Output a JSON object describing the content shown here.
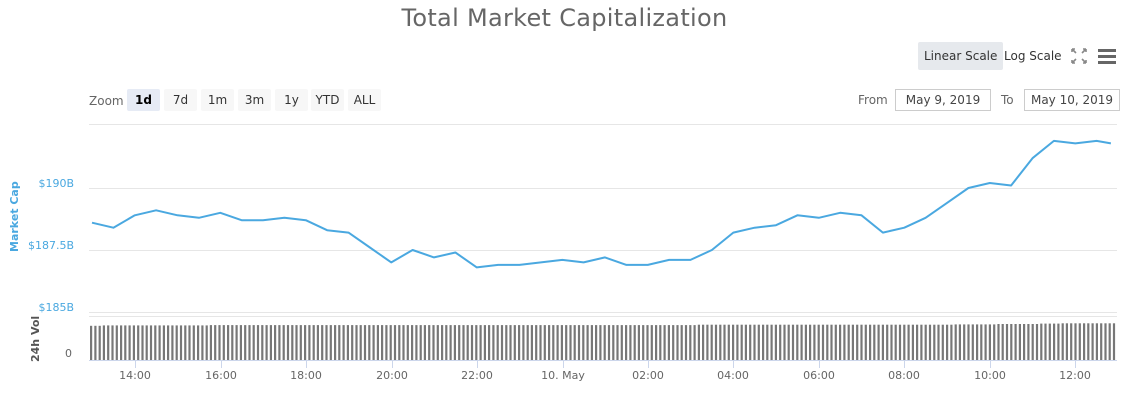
{
  "title": "Total Market Capitalization",
  "toolbar": {
    "linear_scale_label": "Linear Scale",
    "log_scale_label": "Log Scale",
    "fullscreen_icon": "expand-arrows-icon",
    "menu_icon": "hamburger-menu-icon",
    "active_scale": "Linear Scale"
  },
  "range_selector": {
    "zoom_label": "Zoom",
    "buttons": [
      "1d",
      "7d",
      "1m",
      "3m",
      "1y",
      "YTD",
      "ALL"
    ],
    "active": "1d",
    "from_label": "From",
    "from_value": "May 9, 2019",
    "to_label": "To",
    "to_value": "May 10, 2019"
  },
  "colors": {
    "line": "#4aa8e0",
    "axis_label": "#4aa8e0",
    "volume_bars": "#777777",
    "grid": "#e6e6e6",
    "active_button": "#e6ebf5"
  },
  "chart_data": [
    {
      "type": "line",
      "title": "Total Market Capitalization",
      "ylabel": "Market Cap",
      "xlabel": "",
      "y_ticks": [
        "$185B",
        "$187.5B",
        "$190B"
      ],
      "x_ticks": [
        "14:00",
        "16:00",
        "18:00",
        "20:00",
        "22:00",
        "10. May",
        "02:00",
        "04:00",
        "06:00",
        "08:00",
        "10:00",
        "12:00"
      ],
      "ylim": [
        185,
        192.5
      ],
      "grid": true,
      "legend": null,
      "series": [
        {
          "name": "Market Cap",
          "unit": "billion USD",
          "x": [
            "13:00",
            "13:30",
            "14:00",
            "14:30",
            "15:00",
            "15:30",
            "16:00",
            "16:30",
            "17:00",
            "17:30",
            "18:00",
            "18:30",
            "19:00",
            "19:30",
            "20:00",
            "20:30",
            "21:00",
            "21:30",
            "22:00",
            "22:30",
            "23:00",
            "23:30",
            "00:00",
            "00:30",
            "01:00",
            "01:30",
            "02:00",
            "02:30",
            "03:00",
            "03:30",
            "04:00",
            "04:30",
            "05:00",
            "05:30",
            "06:00",
            "06:30",
            "07:00",
            "07:30",
            "08:00",
            "08:30",
            "09:00",
            "09:30",
            "10:00",
            "10:30",
            "11:00",
            "11:30",
            "12:00",
            "12:30",
            "12:50"
          ],
          "values": [
            188.6,
            188.4,
            188.9,
            189.1,
            188.9,
            188.8,
            189.0,
            188.7,
            188.7,
            188.8,
            188.7,
            188.3,
            188.2,
            187.6,
            187.0,
            187.5,
            187.2,
            187.4,
            186.8,
            186.9,
            186.9,
            187.0,
            187.1,
            187.0,
            187.2,
            186.9,
            186.9,
            187.1,
            187.1,
            187.5,
            188.2,
            188.4,
            188.5,
            188.9,
            188.8,
            189.0,
            188.9,
            188.2,
            188.4,
            188.8,
            189.4,
            190.0,
            190.2,
            190.1,
            191.2,
            191.9,
            191.8,
            191.9,
            191.8
          ]
        },
        {
          "name": "24h Vol",
          "type": "bar",
          "ylabel": "24h Vol",
          "y_ticks": [
            "0"
          ],
          "description": "Volume bars nearly flat across the day, rising slightly after ~09:00 and reaching max near 12:00",
          "relative_heights": [
            0.95,
            0.96,
            0.96,
            0.96,
            0.96,
            0.96,
            0.97,
            0.97,
            0.97,
            0.97,
            0.97,
            0.97,
            0.97,
            0.97,
            0.97,
            0.97,
            0.97,
            0.97,
            0.97,
            0.97,
            0.97,
            0.97,
            0.97,
            0.97,
            0.97,
            0.97,
            0.97,
            0.97,
            0.97,
            0.98,
            0.98,
            0.98,
            0.98,
            0.98,
            0.98,
            0.98,
            0.98,
            0.98,
            0.98,
            0.98,
            0.98,
            0.99,
            0.99,
            1.0,
            1.0,
            1.01,
            1.02,
            1.02,
            1.02
          ]
        }
      ]
    }
  ],
  "axes": {
    "market_cap_label": "Market Cap",
    "volume_label": "24h Vol",
    "y_tick_190": "$190B",
    "y_tick_1875": "$187.5B",
    "y_tick_185": "$185B",
    "vol_tick_0": "0",
    "x_ticks": [
      "14:00",
      "16:00",
      "18:00",
      "20:00",
      "22:00",
      "10. May",
      "02:00",
      "04:00",
      "06:00",
      "08:00",
      "10:00",
      "12:00"
    ]
  }
}
